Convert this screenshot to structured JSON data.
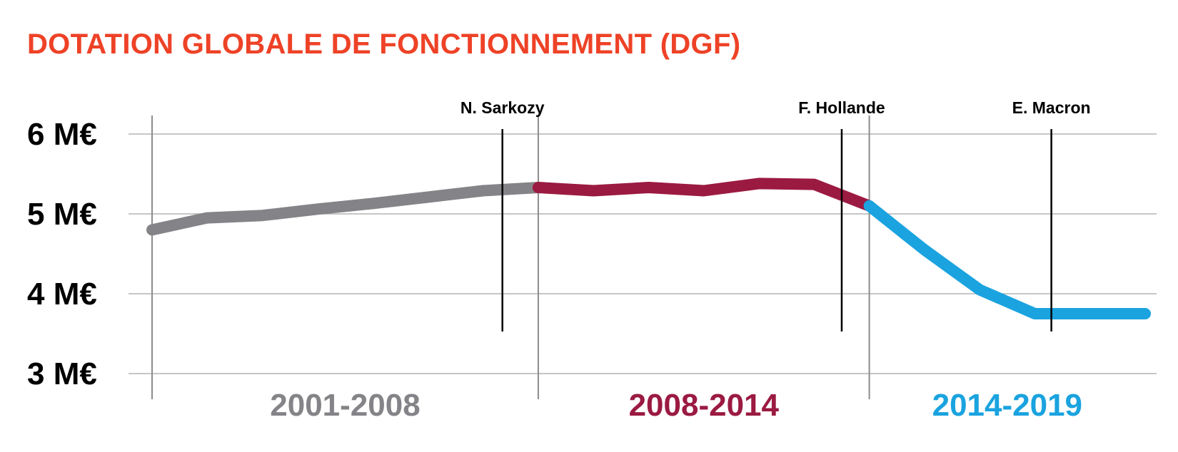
{
  "title": "DOTATION GLOBALE DE FONCTIONNEMENT (DGF)",
  "chart_data": {
    "type": "line",
    "title": "DOTATION GLOBALE DE FONCTIONNEMENT (DGF)",
    "xlabel": "",
    "ylabel": "",
    "ylim": [
      3,
      6
    ],
    "xlim": [
      2001,
      2019
    ],
    "grid": true,
    "y_ticks": [
      {
        "value": 6,
        "label": "6 M€"
      },
      {
        "value": 5,
        "label": "5 M€"
      },
      {
        "value": 4,
        "label": "4 M€"
      },
      {
        "value": 3,
        "label": "3 M€"
      }
    ],
    "period_boundaries": [
      2001,
      2008,
      2014,
      2019
    ],
    "periods": [
      {
        "label": "2001-2008",
        "start": 2001,
        "end": 2008,
        "color": "#848488"
      },
      {
        "label": "2008-2014",
        "start": 2008,
        "end": 2014,
        "color": "#9b1a42"
      },
      {
        "label": "2014-2019",
        "start": 2014,
        "end": 2019,
        "color": "#1aa3df"
      }
    ],
    "presidents": [
      {
        "name": "N. Sarkozy",
        "x": 2007.35
      },
      {
        "name": "F. Hollande",
        "x": 2013.5
      },
      {
        "name": "E. Macron",
        "x": 2017.3
      }
    ],
    "series": [
      {
        "period": "2001-2008",
        "x": [
          2001,
          2002,
          2003,
          2004,
          2005,
          2006,
          2007,
          2008
        ],
        "y": [
          4.8,
          4.95,
          4.98,
          5.06,
          5.13,
          5.21,
          5.29,
          5.33
        ]
      },
      {
        "period": "2008-2014",
        "x": [
          2008,
          2009,
          2010,
          2011,
          2012,
          2013,
          2014
        ],
        "y": [
          5.33,
          5.29,
          5.33,
          5.29,
          5.38,
          5.37,
          5.1
        ]
      },
      {
        "period": "2014-2019",
        "x": [
          2014,
          2015,
          2016,
          2017,
          2018,
          2019
        ],
        "y": [
          5.1,
          4.55,
          4.05,
          3.75,
          3.75,
          3.75
        ]
      }
    ]
  }
}
